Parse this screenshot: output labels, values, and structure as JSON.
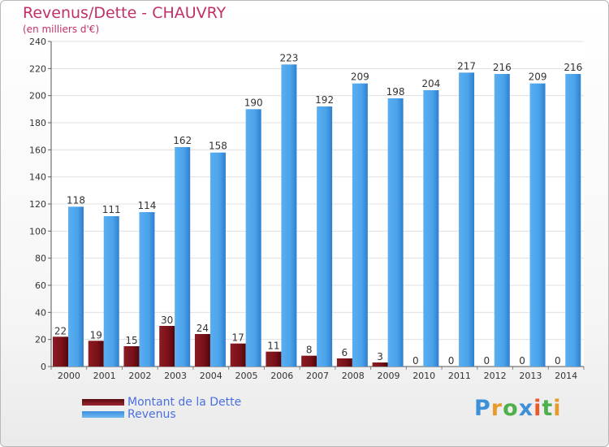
{
  "title": "Revenus/Dette - CHAUVRY",
  "subtitle": "(en milliers d'€)",
  "logo": "Proxiti",
  "colors": {
    "debt": "#7a1018",
    "revenue": "#4aa3ea",
    "title": "#c0306a",
    "legend_text": "#4a6fe0"
  },
  "chart_data": {
    "type": "bar",
    "categories": [
      "2000",
      "2001",
      "2002",
      "2003",
      "2004",
      "2005",
      "2006",
      "2007",
      "2008",
      "2009",
      "2010",
      "2011",
      "2012",
      "2013",
      "2014"
    ],
    "series": [
      {
        "name": "Montant de la Dette",
        "values": [
          22,
          19,
          15,
          30,
          24,
          17,
          11,
          8,
          6,
          3,
          0,
          0,
          0,
          0,
          0
        ]
      },
      {
        "name": "Revenus",
        "values": [
          118,
          111,
          114,
          162,
          158,
          190,
          223,
          192,
          209,
          198,
          204,
          217,
          216,
          209,
          216
        ]
      }
    ],
    "ylim": [
      0,
      240
    ],
    "yticks": [
      0,
      20,
      40,
      60,
      80,
      100,
      120,
      140,
      160,
      180,
      200,
      220,
      240
    ],
    "grid": true,
    "legend_position": "bottom-left"
  }
}
